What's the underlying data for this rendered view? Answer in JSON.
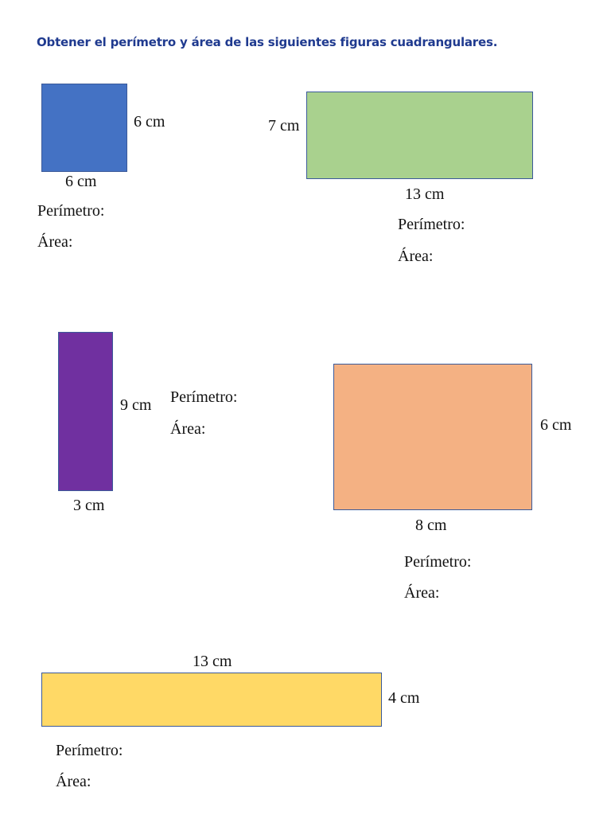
{
  "title": "Obtener el perímetro y área de las siguientes figuras cuadrangulares.",
  "colors": {
    "title": "#1f3a8f",
    "square": "#4472c4",
    "green": "#a9d18e",
    "purple": "#7030a0",
    "orange": "#f4b183",
    "yellow": "#ffd966"
  },
  "labels": {
    "perimetro": "Perímetro:",
    "area": "Área:"
  },
  "figures": [
    {
      "name": "square",
      "side_label": "6 cm",
      "bottom_label": "6 cm"
    },
    {
      "name": "green-rectangle",
      "side_label": "7 cm",
      "bottom_label": "13 cm"
    },
    {
      "name": "purple-rectangle",
      "side_label": "9 cm",
      "bottom_label": "3 cm"
    },
    {
      "name": "orange-rectangle",
      "side_label": "6 cm",
      "bottom_label": "8 cm"
    },
    {
      "name": "yellow-rectangle",
      "top_label": "13 cm",
      "side_label": "4 cm"
    }
  ]
}
